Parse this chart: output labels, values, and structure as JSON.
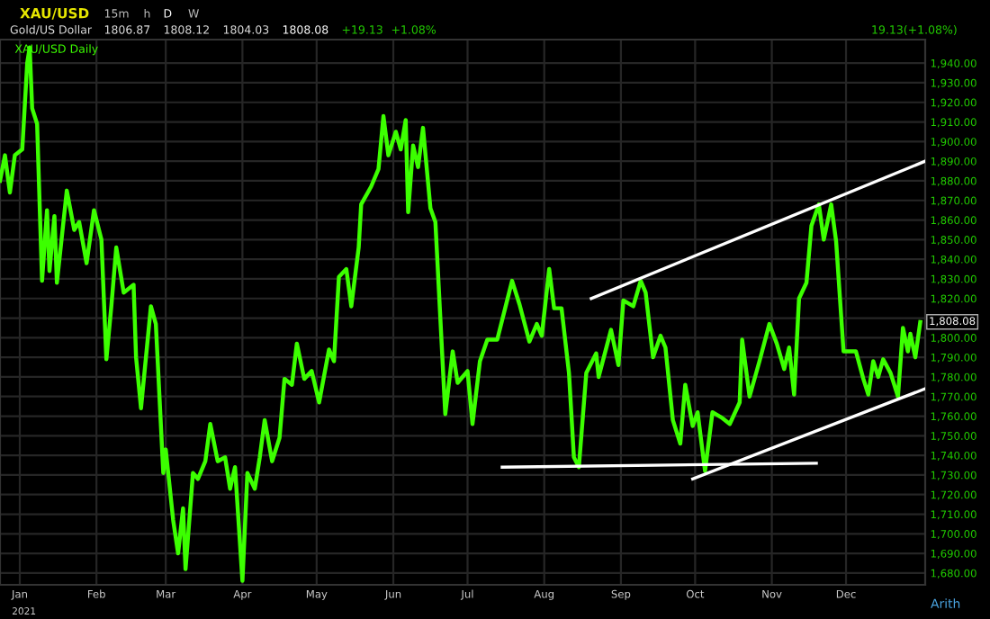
{
  "chart_data": {
    "type": "line",
    "title": "XAU/USD",
    "subtitle": "Gold/US Dollar",
    "annotations": [
      "15m",
      "h",
      "D",
      "W",
      "1806.87",
      "1808.12",
      "1804.03",
      "1808.08",
      "+19.13",
      "+1.08%",
      "19.13(+1.08%)",
      "2021",
      "Arith",
      {
        "text": "1,808.08",
        "x": "2021-12-31",
        "y": 1808.08
      }
    ],
    "series": [
      {
        "name": "XAU/USD Daily",
        "color": "#3cff00",
        "x": [
          "2020-12-24",
          "2020-12-26",
          "2020-12-28",
          "2020-12-30",
          "2021-01-02",
          "2021-01-04",
          "2021-01-05",
          "2021-01-06",
          "2021-01-08",
          "2021-01-10",
          "2021-01-12",
          "2021-01-13",
          "2021-01-15",
          "2021-01-16",
          "2021-01-20",
          "2021-01-23",
          "2021-01-25",
          "2021-01-28",
          "2021-01-31",
          "2021-02-03",
          "2021-02-05",
          "2021-02-07",
          "2021-02-09",
          "2021-02-12",
          "2021-02-16",
          "2021-02-17",
          "2021-02-19",
          "2021-02-23",
          "2021-02-25",
          "2021-02-28",
          "2021-03-01",
          "2021-03-04",
          "2021-03-06",
          "2021-03-08",
          "2021-03-09",
          "2021-03-12",
          "2021-03-14",
          "2021-03-17",
          "2021-03-19",
          "2021-03-22",
          "2021-03-25",
          "2021-03-27",
          "2021-03-29",
          "2021-04-01",
          "2021-04-03",
          "2021-04-06",
          "2021-04-08",
          "2021-04-10",
          "2021-04-13",
          "2021-04-16",
          "2021-04-18",
          "2021-04-21",
          "2021-04-23",
          "2021-04-26",
          "2021-04-29",
          "2021-05-02",
          "2021-05-06",
          "2021-05-08",
          "2021-05-10",
          "2021-05-13",
          "2021-05-15",
          "2021-05-18",
          "2021-05-19",
          "2021-05-23",
          "2021-05-26",
          "2021-05-28",
          "2021-05-30",
          "2021-06-02",
          "2021-06-04",
          "2021-06-06",
          "2021-06-07",
          "2021-06-09",
          "2021-06-11",
          "2021-06-13",
          "2021-06-16",
          "2021-06-18",
          "2021-06-22",
          "2021-06-25",
          "2021-06-27",
          "2021-07-01",
          "2021-07-03",
          "2021-07-06",
          "2021-07-09",
          "2021-07-13",
          "2021-07-19",
          "2021-07-22",
          "2021-07-26",
          "2021-07-29",
          "2021-07-31",
          "2021-08-03",
          "2021-08-05",
          "2021-08-08",
          "2021-08-11",
          "2021-08-13",
          "2021-08-15",
          "2021-08-18",
          "2021-08-22",
          "2021-08-23",
          "2021-08-28",
          "2021-08-31",
          "2021-09-02",
          "2021-09-06",
          "2021-09-09",
          "2021-09-11",
          "2021-09-14",
          "2021-09-17",
          "2021-09-19",
          "2021-09-22",
          "2021-09-25",
          "2021-09-27",
          "2021-09-30",
          "2021-10-02",
          "2021-10-05",
          "2021-10-08",
          "2021-10-12",
          "2021-10-15",
          "2021-10-19",
          "2021-10-20",
          "2021-10-23",
          "2021-10-27",
          "2021-10-31",
          "2021-11-03",
          "2021-11-06",
          "2021-11-08",
          "2021-11-10",
          "2021-11-12",
          "2021-11-15",
          "2021-11-17",
          "2021-11-20",
          "2021-11-22",
          "2021-11-25",
          "2021-11-27",
          "2021-11-30",
          "2021-12-05",
          "2021-12-08",
          "2021-12-10",
          "2021-12-12",
          "2021-12-14",
          "2021-12-16",
          "2021-12-19",
          "2021-12-22",
          "2021-12-24",
          "2021-12-26",
          "2021-12-27",
          "2021-12-29",
          "2021-12-31"
        ],
        "values": [
          1880,
          1893,
          1874,
          1893,
          1896,
          1940,
          1948,
          1917,
          1909,
          1829,
          1865,
          1834,
          1862,
          1828,
          1875,
          1855,
          1859,
          1838,
          1865,
          1850,
          1789,
          1816,
          1846,
          1823,
          1827,
          1790,
          1764,
          1816,
          1807,
          1731,
          1743,
          1707,
          1690,
          1713,
          1682,
          1731,
          1728,
          1737,
          1756,
          1737,
          1739,
          1723,
          1734,
          1676,
          1731,
          1723,
          1739,
          1758,
          1737,
          1749,
          1779,
          1776,
          1797,
          1779,
          1783,
          1767,
          1794,
          1788,
          1831,
          1835,
          1816,
          1846,
          1868,
          1877,
          1886,
          1913,
          1893,
          1905,
          1896,
          1911,
          1864,
          1898,
          1887,
          1907,
          1866,
          1859,
          1761,
          1793,
          1777,
          1783,
          1756,
          1788,
          1799,
          1799,
          1829,
          1817,
          1798,
          1807,
          1801,
          1835,
          1815,
          1815,
          1782,
          1739,
          1734,
          1782,
          1792,
          1780,
          1804,
          1786,
          1819,
          1816,
          1829,
          1823,
          1790,
          1801,
          1795,
          1758,
          1746,
          1776,
          1755,
          1762,
          1732,
          1762,
          1759,
          1756,
          1767,
          1799,
          1770,
          1788,
          1807,
          1797,
          1784,
          1795,
          1771,
          1820,
          1828,
          1857,
          1868,
          1850,
          1868,
          1849,
          1793,
          1793,
          1779,
          1771,
          1788,
          1780,
          1789,
          1782,
          1770,
          1805,
          1793,
          1802,
          1790,
          1808
        ]
      },
      {
        "type": "line",
        "color": "#ffffff",
        "x": [
          "2021-07-15",
          "2021-11-19"
        ],
        "values": [
          1734,
          1736
        ]
      },
      {
        "type": "line",
        "color": "#ffffff",
        "x": [
          "2021-08-20",
          "2022-01-02"
        ],
        "values": [
          1820,
          1890
        ]
      },
      {
        "type": "line",
        "color": "#ffffff",
        "x": [
          "2021-09-30",
          "2022-01-02"
        ],
        "values": [
          1728,
          1774
        ]
      }
    ],
    "xlim": [
      "2020-12-24",
      "2022-01-02"
    ],
    "xticks": [
      {
        "value": "2021-01-01",
        "label": "Jan"
      },
      {
        "value": "2021-02-01",
        "label": "Feb"
      },
      {
        "value": "2021-03-01",
        "label": "Mar"
      },
      {
        "value": "2021-04-01",
        "label": "Apr"
      },
      {
        "value": "2021-05-01",
        "label": "May"
      },
      {
        "value": "2021-06-01",
        "label": "Jun"
      },
      {
        "value": "2021-07-01",
        "label": "Jul"
      },
      {
        "value": "2021-08-01",
        "label": "Aug"
      },
      {
        "value": "2021-09-01",
        "label": "Sep"
      },
      {
        "value": "2021-10-01",
        "label": "Oct"
      },
      {
        "value": "2021-11-01",
        "label": "Nov"
      },
      {
        "value": "2021-12-01",
        "label": "Dec"
      }
    ],
    "ylim": [
      1674,
      1952
    ],
    "yticks": [
      {
        "value": 1680,
        "label": "1,680.00"
      },
      {
        "value": 1690,
        "label": "1,690.00"
      },
      {
        "value": 1700,
        "label": "1,700.00"
      },
      {
        "value": 1710,
        "label": "1,710.00"
      },
      {
        "value": 1720,
        "label": "1,720.00"
      },
      {
        "value": 1730,
        "label": "1,730.00"
      },
      {
        "value": 1740,
        "label": "1,740.00"
      },
      {
        "value": 1750,
        "label": "1,750.00"
      },
      {
        "value": 1760,
        "label": "1,760.00"
      },
      {
        "value": 1770,
        "label": "1,770.00"
      },
      {
        "value": 1780,
        "label": "1,780.00"
      },
      {
        "value": 1790,
        "label": "1,790.00"
      },
      {
        "value": 1800,
        "label": "1,800.00"
      },
      {
        "value": 1810,
        "label": null
      },
      {
        "value": 1820,
        "label": "1,820.00"
      },
      {
        "value": 1830,
        "label": "1,830.00"
      },
      {
        "value": 1840,
        "label": "1,840.00"
      },
      {
        "value": 1850,
        "label": "1,850.00"
      },
      {
        "value": 1860,
        "label": "1,860.00"
      },
      {
        "value": 1870,
        "label": "1,870.00"
      },
      {
        "value": 1880,
        "label": "1,880.00"
      },
      {
        "value": 1890,
        "label": "1,890.00"
      },
      {
        "value": 1900,
        "label": "1,900.00"
      },
      {
        "value": 1910,
        "label": "1,910.00"
      },
      {
        "value": 1920,
        "label": "1,920.00"
      },
      {
        "value": 1930,
        "label": "1,930.00"
      },
      {
        "value": 1940,
        "label": "1,940.00"
      }
    ],
    "grid": true,
    "legend": "top left",
    "marker": "none",
    "line_style": "solid"
  }
}
